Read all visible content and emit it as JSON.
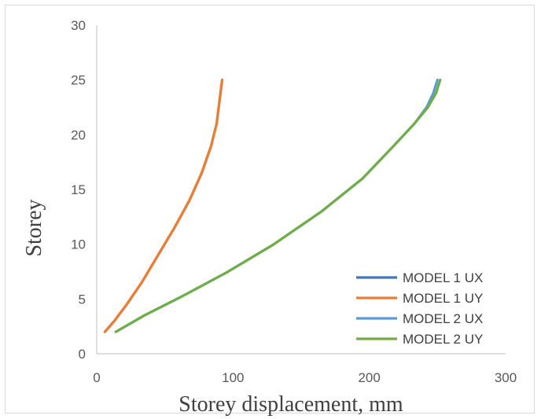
{
  "chart_data": {
    "type": "line",
    "xlabel": "Storey displacement, mm",
    "ylabel": "Storey",
    "xlim": [
      0,
      300
    ],
    "ylim": [
      0,
      30
    ],
    "xticks": [
      0,
      100,
      200,
      300
    ],
    "yticks": [
      0,
      5,
      10,
      15,
      20,
      25,
      30
    ],
    "grid": false,
    "legend_position": "bottom-right",
    "series": [
      {
        "name": "MODEL 1 UX",
        "color": "#4472C4",
        "x": [
          6,
          13,
          22,
          33,
          45,
          57,
          68,
          77,
          84,
          88,
          90,
          92
        ],
        "y": [
          2,
          3,
          4.5,
          6.5,
          9,
          11.5,
          14,
          16.5,
          19,
          21,
          23,
          25
        ]
      },
      {
        "name": "MODEL 1 UY",
        "color": "#ED7D31",
        "x": [
          6,
          13,
          22,
          33,
          45,
          57,
          68,
          77,
          84,
          88,
          90,
          92
        ],
        "y": [
          2,
          3,
          4.5,
          6.5,
          9,
          11.5,
          14,
          16.5,
          19,
          21,
          23,
          25
        ]
      },
      {
        "name": "MODEL 2 UX",
        "color": "#5B9BD5",
        "x": [
          14,
          35,
          62,
          95,
          130,
          165,
          195,
          218,
          233,
          242,
          247,
          250
        ],
        "y": [
          2,
          3.5,
          5.2,
          7.4,
          10,
          13,
          16,
          19,
          21,
          22.5,
          23.8,
          25
        ]
      },
      {
        "name": "MODEL 2 UY",
        "color": "#70AD47",
        "x": [
          14,
          35,
          62,
          95,
          130,
          165,
          195,
          218,
          233,
          243,
          249,
          252
        ],
        "y": [
          2,
          3.5,
          5.2,
          7.4,
          10,
          13,
          16,
          19,
          21,
          22.5,
          23.8,
          25
        ]
      }
    ]
  }
}
